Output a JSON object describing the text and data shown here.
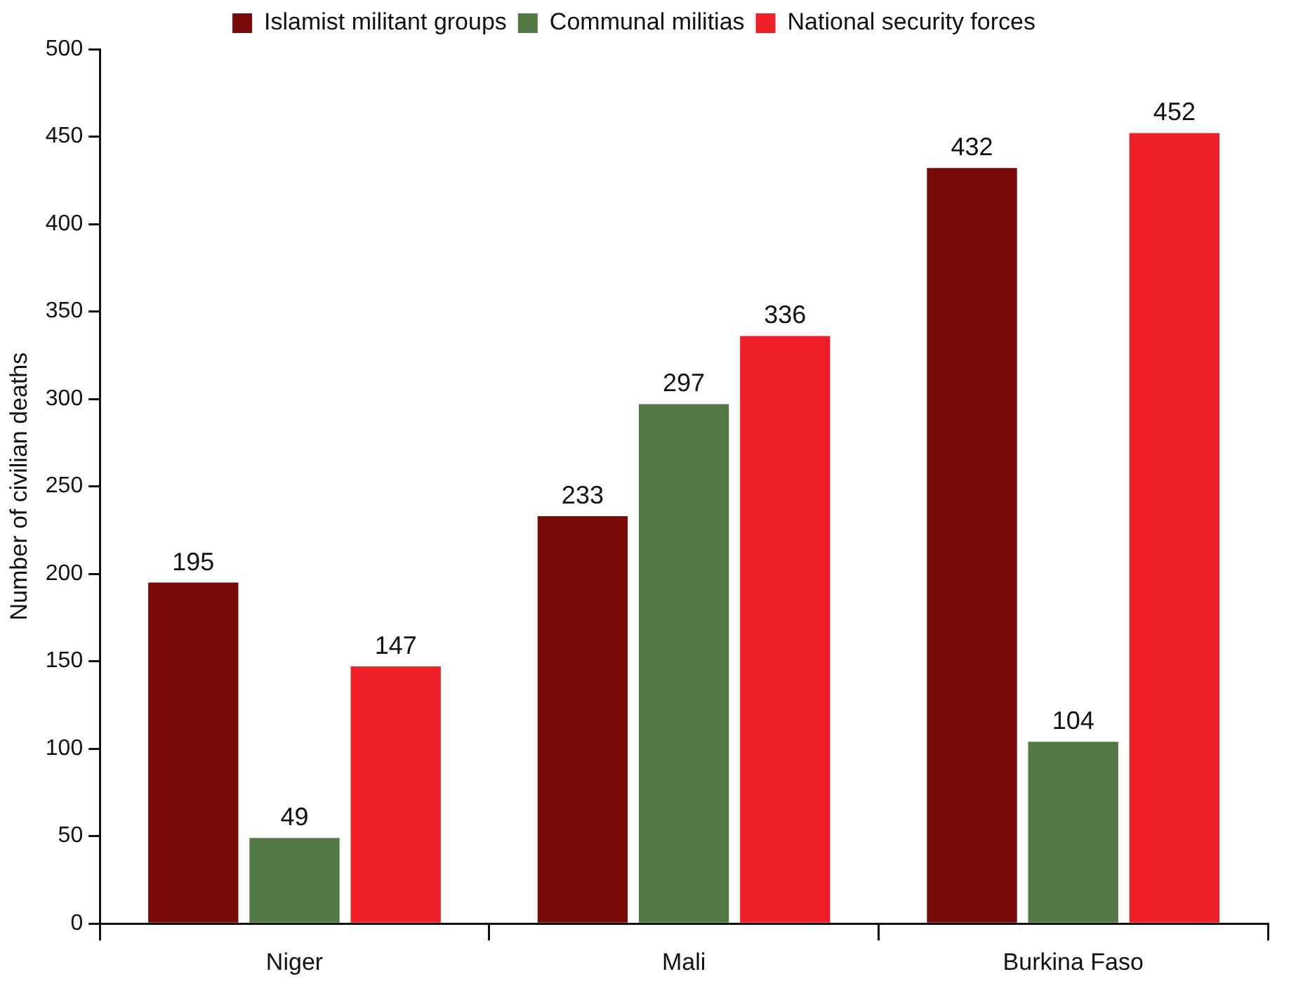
{
  "chart_data": {
    "type": "bar",
    "ylabel": "Number of civilian deaths",
    "categories": [
      "Niger",
      "Mali",
      "Burkina Faso"
    ],
    "series": [
      {
        "name": "Islamist militant groups",
        "color": "#7a0a0a",
        "values": [
          195,
          233,
          432
        ]
      },
      {
        "name": "Communal militias",
        "color": "#537a45",
        "values": [
          49,
          297,
          104
        ]
      },
      {
        "name": "National security forces",
        "color": "#ee1f26",
        "values": [
          147,
          336,
          452
        ]
      }
    ],
    "ylim": [
      0,
      500
    ],
    "yticks": [
      0,
      50,
      100,
      150,
      200,
      250,
      300,
      350,
      400,
      450,
      500
    ],
    "grid": false,
    "legend": "top",
    "data_labels": true
  }
}
